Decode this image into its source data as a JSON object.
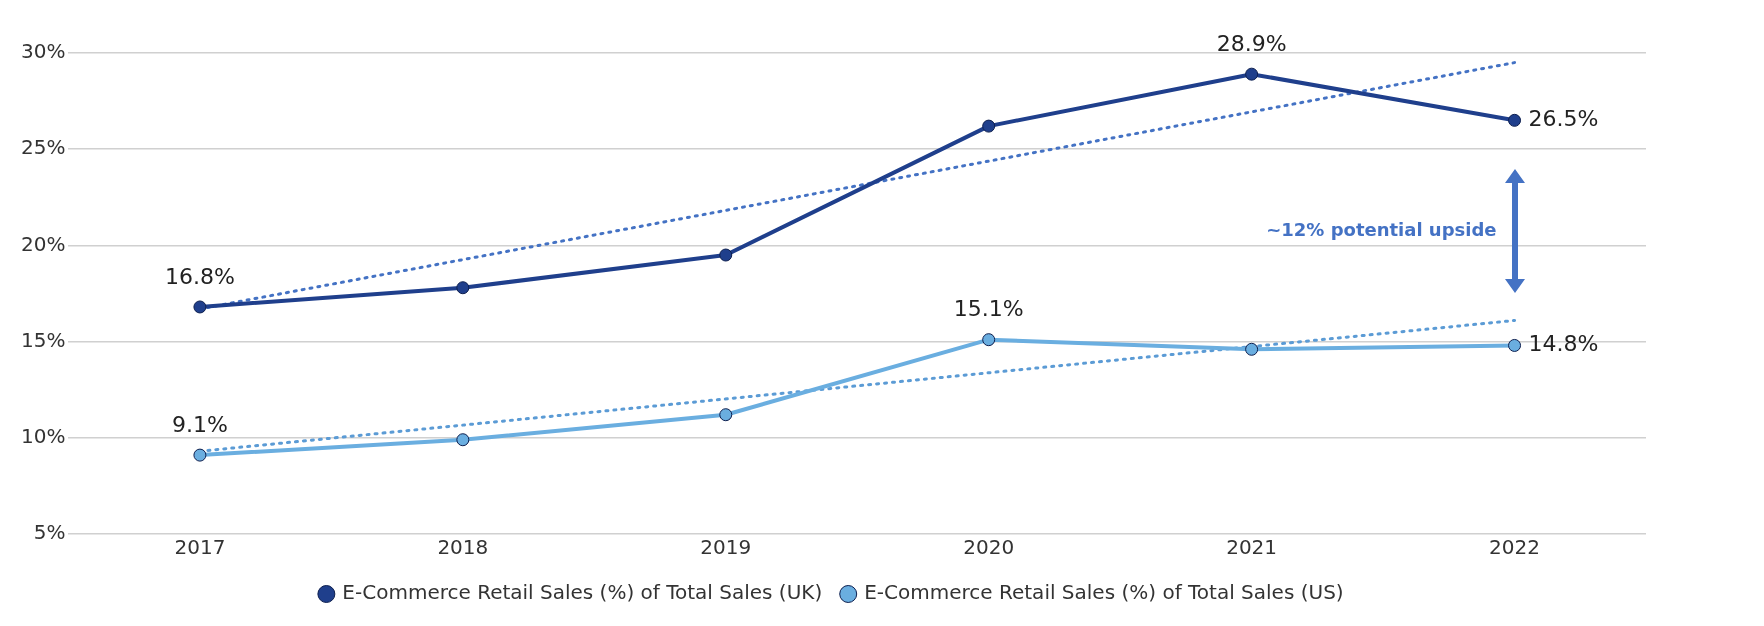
{
  "chart_data": {
    "type": "line",
    "categories": [
      "2017",
      "2018",
      "2019",
      "2020",
      "2021",
      "2022"
    ],
    "series": [
      {
        "name": "E-Commerce Retail Sales (%) of Total Sales (UK)",
        "color": "#1f3f8c",
        "values": [
          16.8,
          17.8,
          19.5,
          26.2,
          28.9,
          26.5
        ],
        "value_labels": [
          "16.8%",
          null,
          null,
          null,
          "28.9%",
          "26.5%"
        ],
        "marker": "circle",
        "line_style": "solid"
      },
      {
        "name": "E-Commerce Retail Sales (%) of Total Sales (US)",
        "color": "#6aaee0",
        "values": [
          9.1,
          9.9,
          11.2,
          15.1,
          14.6,
          14.8
        ],
        "value_labels": [
          "9.1%",
          null,
          null,
          "15.1%",
          null,
          "14.8%"
        ],
        "marker": "circle",
        "line_style": "solid"
      },
      {
        "type": "line",
        "color": "#4472c4",
        "values": [
          16.7,
          null,
          null,
          null,
          null,
          29.5
        ],
        "marker": "none",
        "line_style": "dotted"
      },
      {
        "type": "line",
        "color": "#5b9bd5",
        "values": [
          9.3,
          null,
          null,
          null,
          null,
          16.1
        ],
        "marker": "none",
        "line_style": "dotted"
      }
    ],
    "ylim": [
      5,
      30
    ],
    "yticks": [
      {
        "value": 5,
        "label": "5%"
      },
      {
        "value": 10,
        "label": "10%"
      },
      {
        "value": 15,
        "label": "15%"
      },
      {
        "value": 20,
        "label": "20%"
      },
      {
        "value": 25,
        "label": "25%"
      },
      {
        "value": 30,
        "label": "30%"
      }
    ],
    "grid": "y",
    "legend": "bottom",
    "annotations": [
      "~12% potential upside"
    ]
  }
}
